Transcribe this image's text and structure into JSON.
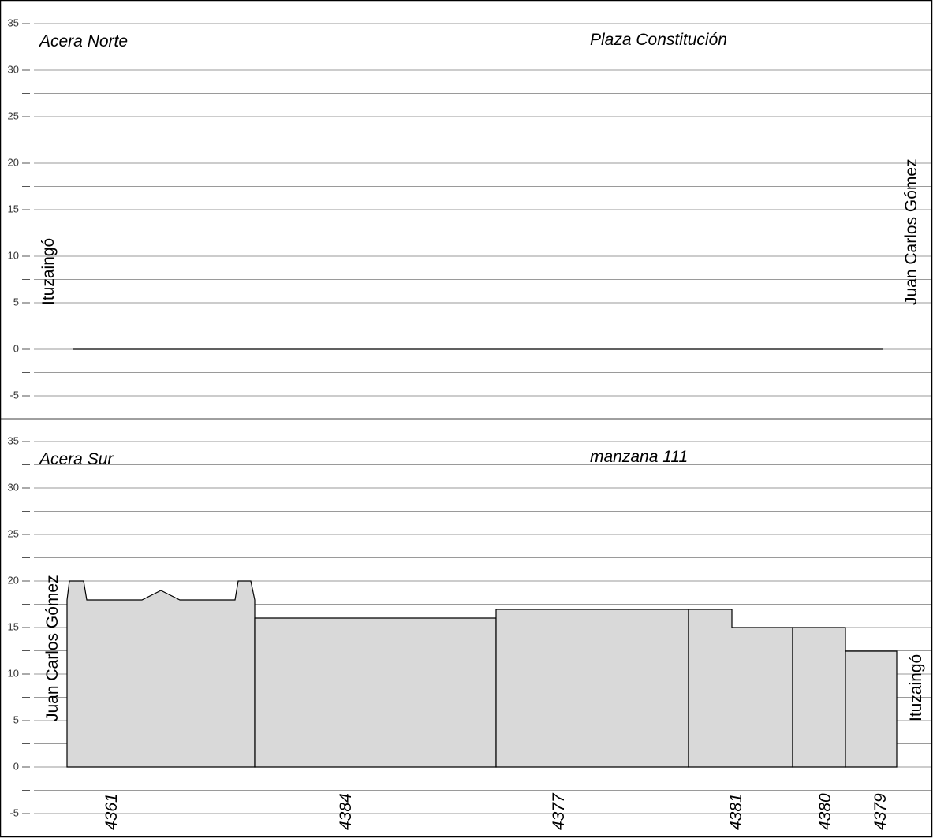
{
  "panels": [
    {
      "label": "Acera Norte",
      "title": "Plaza Constitución",
      "left_street": "Ituzaingó",
      "right_street": "Juan Carlos Gómez",
      "ylim": [
        -5,
        35
      ],
      "yticks": [
        -5,
        0,
        5,
        10,
        15,
        20,
        25,
        30,
        35
      ],
      "lots": []
    },
    {
      "label": "Acera Sur",
      "title": "manzana 111",
      "left_street": "Juan Carlos Gómez",
      "right_street": "Ituzaingó",
      "ylim": [
        -5,
        35
      ],
      "yticks": [
        -5,
        0,
        5,
        10,
        15,
        20,
        25,
        30,
        35
      ],
      "lots": [
        "4361",
        "4384",
        "4377",
        "4381",
        "4380",
        "4379"
      ]
    }
  ]
}
